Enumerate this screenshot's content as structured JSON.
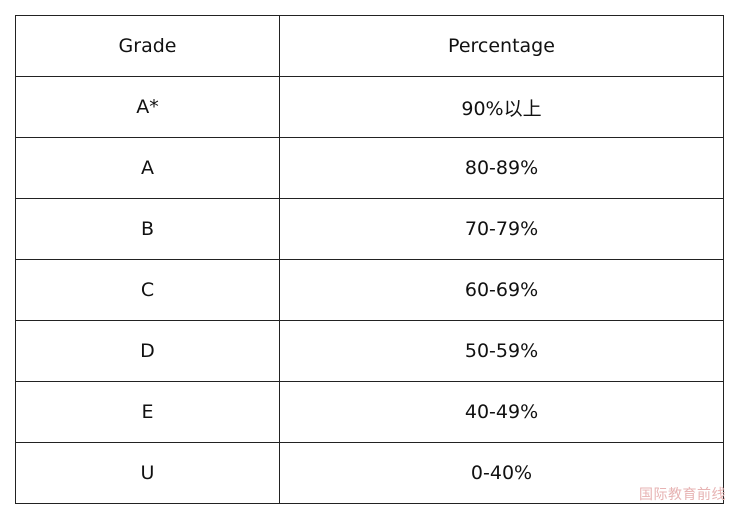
{
  "table": {
    "headers": [
      "Grade",
      "Percentage"
    ],
    "rows": [
      [
        "A*",
        "90%以上"
      ],
      [
        "A",
        "80-89%"
      ],
      [
        "B",
        "70-79%"
      ],
      [
        "C",
        "60-69%"
      ],
      [
        "D",
        "50-59%"
      ],
      [
        "E",
        "40-49%"
      ],
      [
        "U",
        "0-40%"
      ]
    ]
  },
  "watermark": "国际教育前线"
}
